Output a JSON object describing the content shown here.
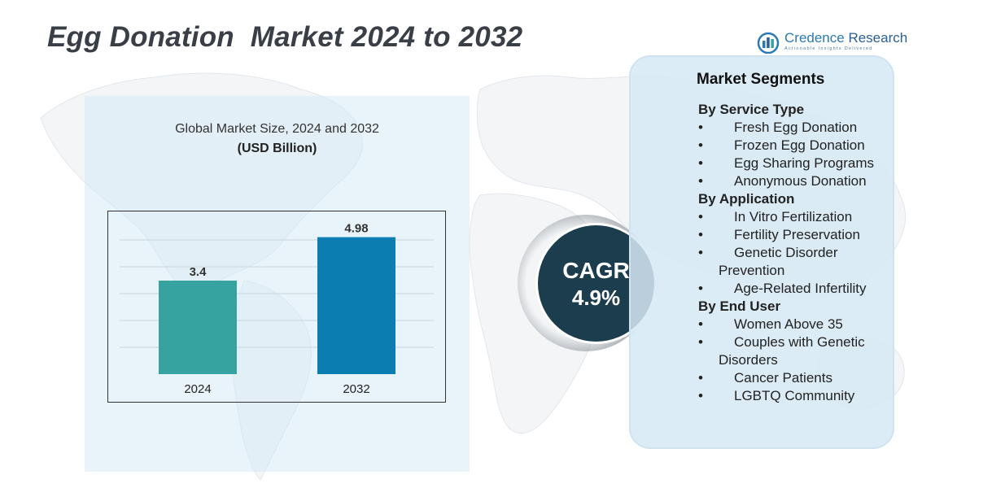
{
  "title": "Egg Donation  Market 2024 to 2032",
  "logo": {
    "name_main": "Credence",
    "name_sub": "Research",
    "tagline": "Actionable Insights Delivered"
  },
  "colors": {
    "bar_2024": "#37a3a0",
    "bar_2032": "#0b7db0",
    "cagr_circle": "#1c3d4e",
    "panel": "#d6e9f5"
  },
  "chart_data": {
    "type": "bar",
    "title": "Global Market Size, 2024 and 2032",
    "unit_label": "(USD Billion)",
    "categories": [
      "2024",
      "2032"
    ],
    "values": [
      3.4,
      4.98
    ],
    "value_labels": [
      "3.4",
      "4.98"
    ],
    "ylim": [
      0,
      5.5
    ],
    "grid": true,
    "legend": "none"
  },
  "cagr": {
    "label": "CAGR",
    "value": "4.9%"
  },
  "segments": {
    "title": "Market Segments",
    "groups": [
      {
        "title": "By Service Type",
        "items": [
          "Fresh Egg Donation",
          "Frozen Egg Donation",
          "Egg Sharing Programs",
          "Anonymous Donation"
        ]
      },
      {
        "title": "By Application",
        "items": [
          "In Vitro Fertilization",
          "Fertility Preservation",
          "Genetic Disorder Prevention",
          "Age-Related Infertility"
        ]
      },
      {
        "title": "By End User",
        "items": [
          "Women Above 35",
          "Couples with Genetic Disorders",
          "Cancer Patients",
          "LGBTQ Community"
        ]
      }
    ]
  }
}
